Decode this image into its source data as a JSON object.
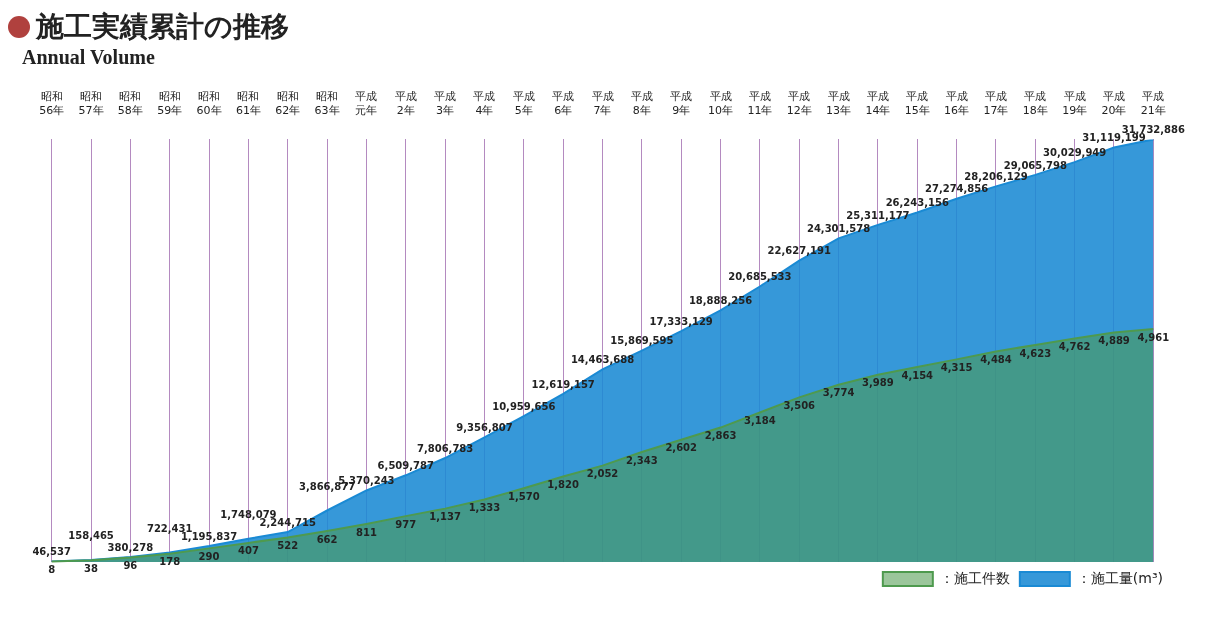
{
  "chart_data": {
    "type": "area",
    "title": "施工実績累計の推移",
    "subtitle": "Annual Volume",
    "categories": [
      "昭和56年",
      "昭和57年",
      "昭和58年",
      "昭和59年",
      "昭和60年",
      "昭和61年",
      "昭和62年",
      "昭和63年",
      "平成元年",
      "平成2年",
      "平成3年",
      "平成4年",
      "平成5年",
      "平成6年",
      "平成7年",
      "平成8年",
      "平成9年",
      "平成10年",
      "平成11年",
      "平成12年",
      "平成13年",
      "平成14年",
      "平成15年",
      "平成16年",
      "平成17年",
      "平成18年",
      "平成19年",
      "平成20年",
      "平成21年"
    ],
    "series": [
      {
        "name": "：施工量(m³)",
        "color": "#1a8ad4",
        "values": [
          46537,
          158465,
          380278,
          722431,
          1195837,
          1748079,
          2244715,
          3866877,
          5370243,
          6509787,
          7806783,
          9356807,
          10959656,
          12619157,
          14463688,
          15869595,
          17333129,
          18888256,
          20685533,
          22627191,
          24301578,
          25311177,
          26243156,
          27274856,
          28206129,
          29065798,
          30029949,
          31119199,
          31732886
        ],
        "value_labels": [
          "46,537",
          "158,465",
          "380,278",
          "722,431",
          "1,195,837",
          "1,748,079",
          "2,244,715",
          "3,866,877",
          "5,370,243",
          "6,509,787",
          "7,806,783",
          "9,356,807",
          "10,959,656",
          "12,619,157",
          "14,463,688",
          "15,869,595",
          "17,333,129",
          "18,888,256",
          "20,685,533",
          "22,627,191",
          "24,301,578",
          "25,311,177",
          "26,243,156",
          "27,274,856",
          "28,206,129",
          "29,065,798",
          "30,029,949",
          "31,119,199",
          "31,732,886"
        ]
      },
      {
        "name": "：施工件数",
        "color": "#4e9a4e",
        "axis": "y2",
        "values": [
          8,
          38,
          96,
          178,
          290,
          407,
          522,
          662,
          811,
          977,
          1137,
          1333,
          1570,
          1820,
          2052,
          2343,
          2602,
          2863,
          3184,
          3506,
          3774,
          3989,
          4154,
          4315,
          4484,
          4623,
          4762,
          4889,
          4961
        ],
        "value_labels": [
          "8",
          "38",
          "96",
          "178",
          "290",
          "407",
          "522",
          "662",
          "811",
          "977",
          "1,137",
          "1,333",
          "1,570",
          "1,820",
          "2,052",
          "2,343",
          "2,602",
          "2,863",
          "3,184",
          "3,506",
          "3,774",
          "3,989",
          "4,154",
          "4,315",
          "4,484",
          "4,623",
          "4,762",
          "4,889",
          "4,961"
        ]
      }
    ],
    "grid": "x",
    "legend": "bottom right",
    "marker": "none",
    "tick_labels": "x"
  }
}
